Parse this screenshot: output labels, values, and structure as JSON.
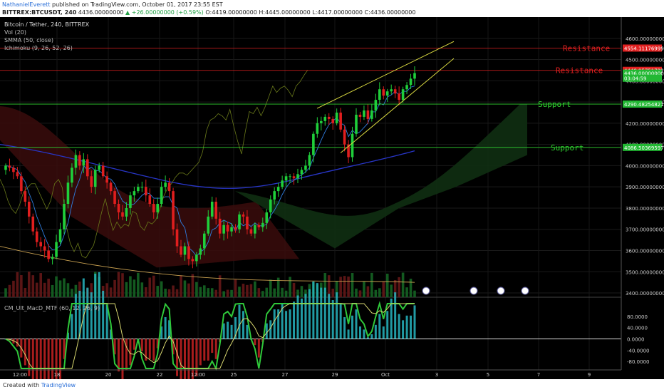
{
  "header": {
    "author": "NathanielEverett",
    "published": "published on TradingView.com, October 01, 2017 23:55 EST",
    "symbol": "BITTREX:BTCUSDT, 240",
    "last": "4436.00000000",
    "change": "▲ +26.00000000 (+0.59%)",
    "ohlc": "O:4419.00000000 H:4445.00000000 L:4417.00000000 C:4436.00000000"
  },
  "footer": {
    "created": "Created with",
    "brand": "TradingView"
  },
  "legend": {
    "title": "Bitcoin / Tether, 240, BITTREX",
    "vol": "Vol (20)",
    "smma": "SMMA (50, close)",
    "ichimoku": "Ichimoku (9, 26, 52, 26)",
    "macd": "CM_Ult_MacD_MTF (60, 12, 26, 9)"
  },
  "colors": {
    "up": "#1fcf3a",
    "down": "#e01e1e",
    "smma": "#2836c8",
    "tenkan": "#2f7ee0",
    "resistance": "#e02020",
    "support": "#30d030",
    "wedge": "#d8d840"
  },
  "chart_data": {
    "type": "candlestick",
    "y_axis": {
      "ylim": [
        3380,
        4700
      ],
      "ticks": [
        "4600.00000000",
        "4500.00000000",
        "4400.00000000",
        "4300.00000000",
        "4200.00000000",
        "4100.00000000",
        "4000.00000000",
        "3900.00000000",
        "3800.00000000",
        "3700.00000000",
        "3600.00000000",
        "3500.00000000",
        "3400.00000000"
      ]
    },
    "x_axis": {
      "ticks": [
        "12:00",
        "18",
        "20",
        "22",
        "12:00",
        "25",
        "27",
        "29",
        "Oct",
        "3",
        "5",
        "7",
        "9"
      ]
    },
    "price_tags": [
      {
        "label": "4554.11176999",
        "value": 4554,
        "color": "#e02020"
      },
      {
        "label": "4448.95751722",
        "value": 4449,
        "color": "#e02020"
      },
      {
        "label": "4436.00000000",
        "value": 4436,
        "color": "#22b833"
      },
      {
        "label": "03:04:59",
        "value": 4412,
        "color": "#22b833"
      },
      {
        "label": "4290.48254821",
        "value": 4290,
        "color": "#22b833"
      },
      {
        "label": "4086.50369597",
        "value": 4086,
        "color": "#22b833"
      }
    ],
    "levels": [
      {
        "name": "Resistance",
        "value": 4554,
        "kind": "resistance"
      },
      {
        "name": "Resistance",
        "value": 4449,
        "kind": "resistance"
      },
      {
        "name": "Support",
        "value": 4290,
        "kind": "support"
      },
      {
        "name": "Support",
        "value": 4086,
        "kind": "support"
      }
    ],
    "close_path": [
      4000,
      3990,
      3970,
      3950,
      3880,
      3830,
      3760,
      3690,
      3640,
      3620,
      3600,
      3560,
      3570,
      3640,
      3700,
      3820,
      3920,
      3990,
      4050,
      4000,
      4030,
      3950,
      3900,
      3980,
      4000,
      3950,
      3920,
      3880,
      3820,
      3780,
      3760,
      3800,
      3860,
      3880,
      3900,
      3900,
      3860,
      3820,
      3780,
      3820,
      3900,
      3920,
      3880,
      3700,
      3620,
      3580,
      3620,
      3560,
      3550,
      3580,
      3610,
      3680,
      3760,
      3830,
      3750,
      3680,
      3720,
      3690,
      3710,
      3700,
      3770,
      3760,
      3700,
      3680,
      3720,
      3710,
      3730,
      3780,
      3840,
      3880,
      3900,
      3930,
      3950,
      3950,
      3940,
      3960,
      3980,
      4000,
      4050,
      4150,
      4200,
      4210,
      4230,
      4220,
      4200,
      4250,
      4170,
      4100,
      4040,
      4150,
      4240,
      4230,
      4260,
      4220,
      4260,
      4310,
      4360,
      4330,
      4350,
      4360,
      4340,
      4310,
      4360,
      4380,
      4410,
      4436
    ],
    "macd_range": [
      -110,
      130
    ],
    "macd_ticks": [
      "80.0000",
      "40.0000",
      "0.0000",
      "-40.0000",
      "-80.0000"
    ]
  }
}
